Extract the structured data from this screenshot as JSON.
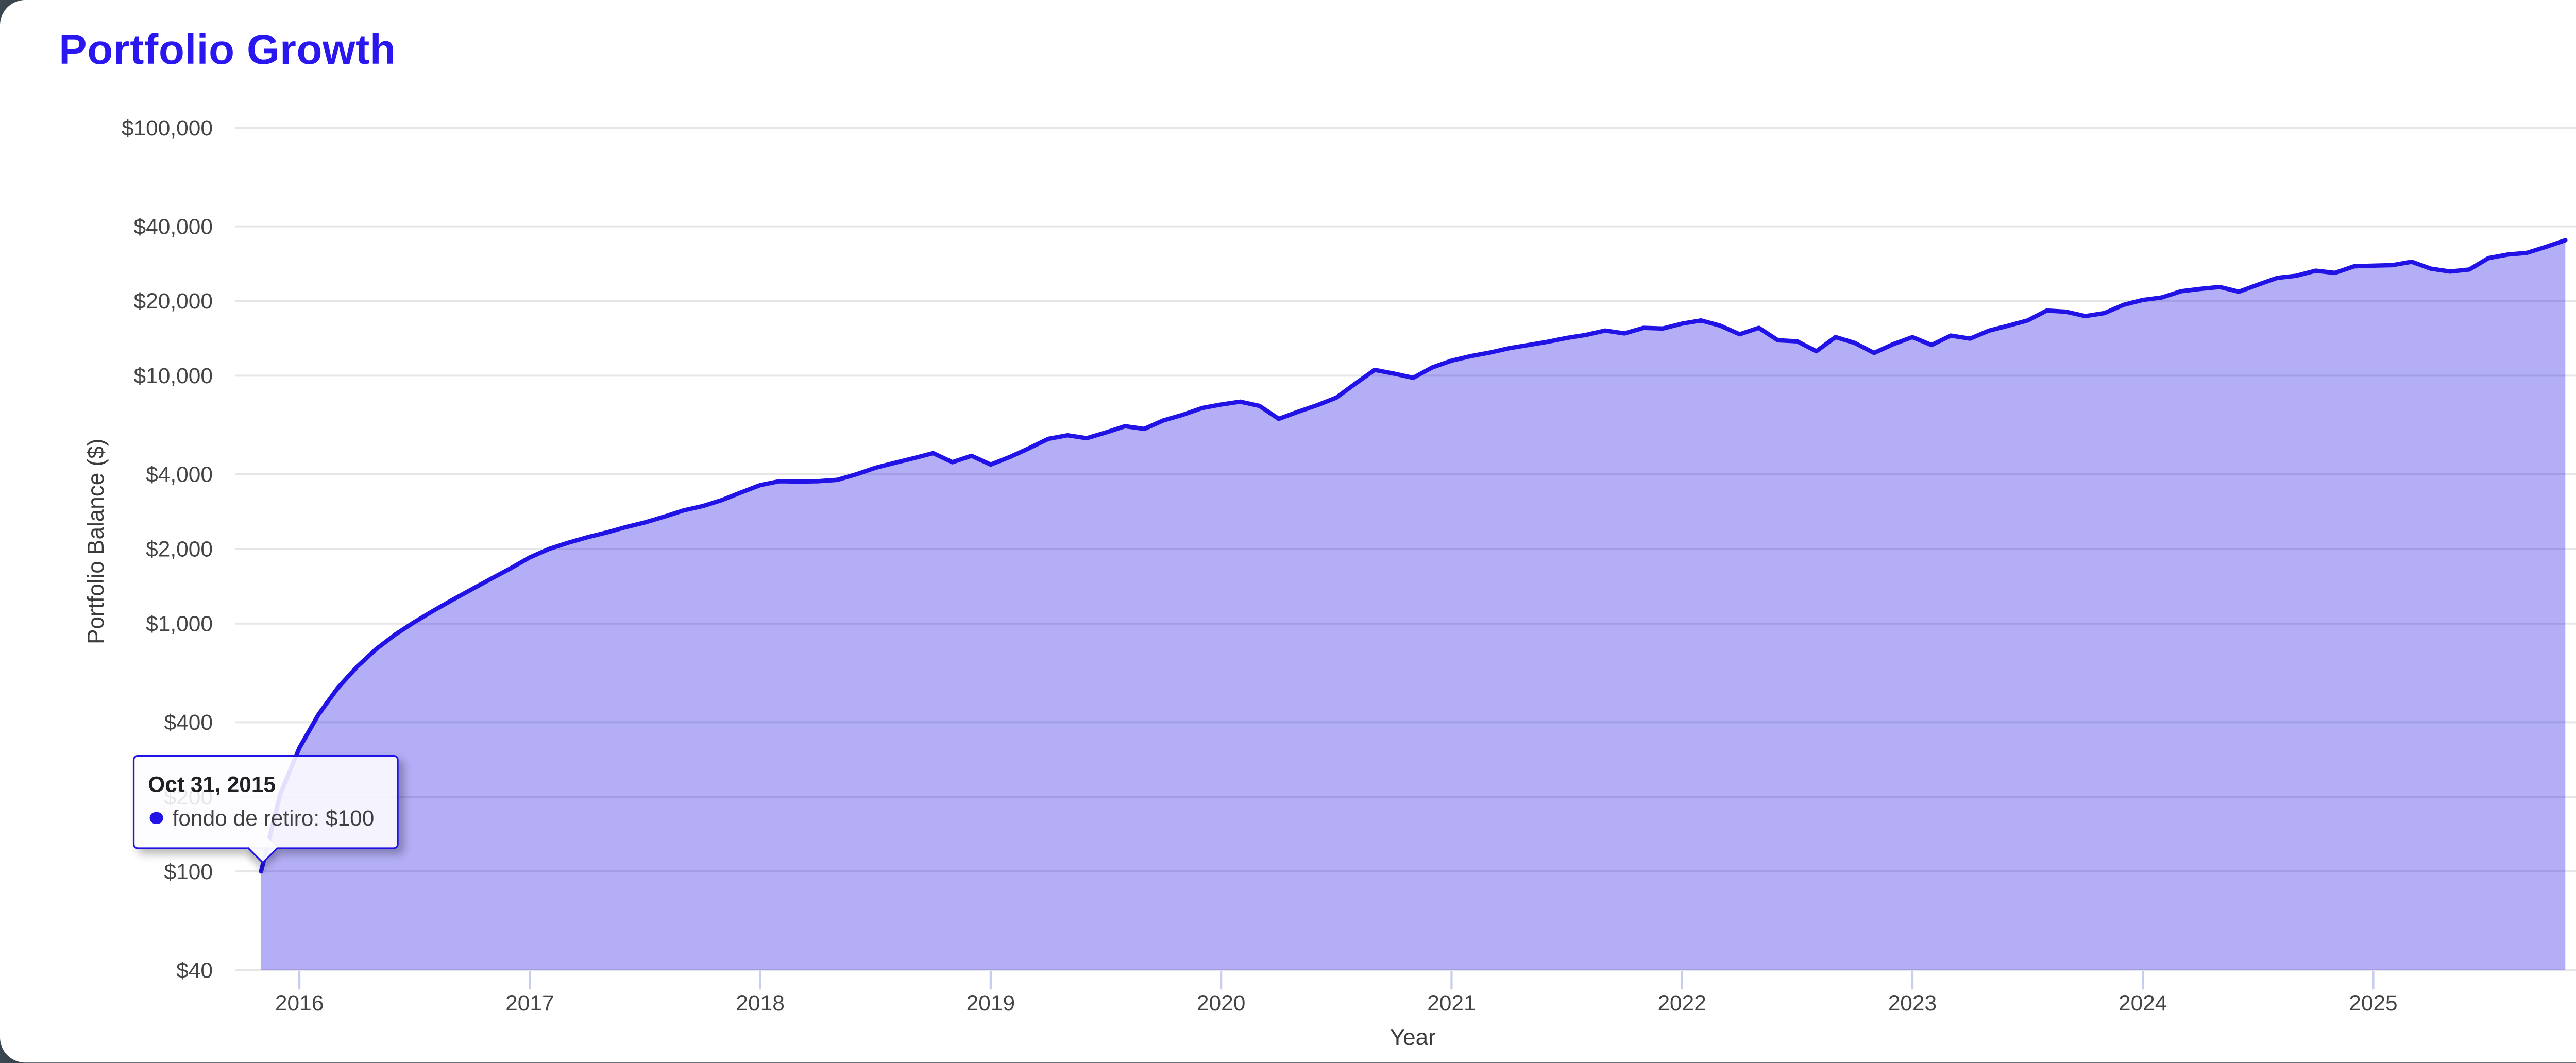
{
  "header": {
    "title": "Portfolio Growth"
  },
  "colors": {
    "title_text": "#2a17f0",
    "series_line": "#2112e6",
    "series_fill": "rgba(33,18,230,0.34)",
    "gridline": "#e6e6e6",
    "tick_text": "#444444",
    "axis_title_text": "#3b3b3b",
    "x_tick_mark": "#c7cdec",
    "tooltip_border": "#2112e6",
    "page_background": "#44525c",
    "card_background": "#ffffff"
  },
  "tooltip": {
    "date": "Oct 31, 2015",
    "series_name": "fondo de retiro",
    "value": "$100",
    "series_line": "fondo de retiro: $100"
  },
  "chart_data": {
    "type": "area",
    "title": "Portfolio Growth",
    "xlabel": "Year",
    "ylabel": "Portfolio Balance ($)",
    "legend_position": "none",
    "grid": true,
    "y_axis": {
      "scale": "log",
      "range": [
        40,
        100000
      ],
      "ticks": [
        {
          "label": "$100,000",
          "value": 100000
        },
        {
          "label": "$40,000",
          "value": 40000
        },
        {
          "label": "$20,000",
          "value": 20000
        },
        {
          "label": "$10,000",
          "value": 10000
        },
        {
          "label": "$4,000",
          "value": 4000
        },
        {
          "label": "$2,000",
          "value": 2000
        },
        {
          "label": "$1,000",
          "value": 1000
        },
        {
          "label": "$400",
          "value": 400
        },
        {
          "label": "$200",
          "value": 200
        },
        {
          "label": "$100",
          "value": 100
        },
        {
          "label": "$40",
          "value": 40
        }
      ]
    },
    "x_axis": {
      "tick_years": [
        2016,
        2017,
        2018,
        2019,
        2020,
        2021,
        2022,
        2023,
        2024,
        2025
      ],
      "range_years": [
        2015.833,
        2025.833
      ]
    },
    "series": [
      {
        "name": "fondo de retiro",
        "start": "2015-10-31",
        "frequency": "monthly",
        "values": [
          100,
          205,
          315,
          430,
          550,
          670,
          790,
          905,
          1015,
          1130,
          1250,
          1380,
          1520,
          1670,
          1850,
          2000,
          2120,
          2230,
          2330,
          2450,
          2560,
          2700,
          2860,
          2980,
          3150,
          3380,
          3620,
          3750,
          3740,
          3750,
          3800,
          4000,
          4250,
          4450,
          4650,
          4870,
          4480,
          4750,
          4380,
          4700,
          5100,
          5560,
          5750,
          5600,
          5900,
          6250,
          6100,
          6600,
          6950,
          7400,
          7650,
          7850,
          7550,
          6700,
          7150,
          7600,
          8150,
          9300,
          10550,
          10200,
          9800,
          10800,
          11500,
          12000,
          12400,
          12900,
          13300,
          13700,
          14200,
          14600,
          15200,
          14800,
          15600,
          15500,
          16200,
          16700,
          15900,
          14700,
          15600,
          13900,
          13750,
          12550,
          14300,
          13550,
          12350,
          13400,
          14300,
          13300,
          14500,
          14100,
          15200,
          15900,
          16700,
          18300,
          18100,
          17400,
          17900,
          19300,
          20200,
          20700,
          21900,
          22400,
          22800,
          21800,
          23300,
          24800,
          25300,
          26500,
          26000,
          27600,
          27800,
          27900,
          28800,
          27000,
          26300,
          26800,
          29800,
          30800,
          31300,
          33100,
          35200
        ]
      }
    ]
  }
}
